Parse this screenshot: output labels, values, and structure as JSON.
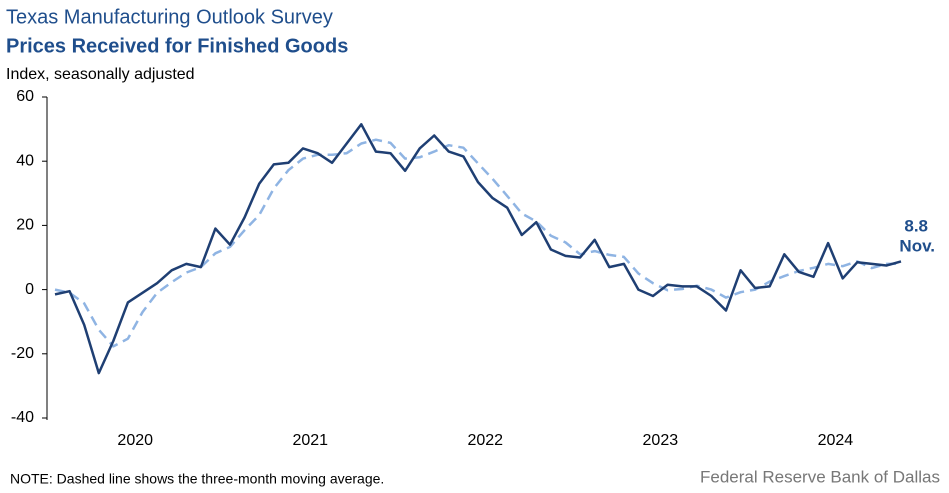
{
  "chart_data": {
    "type": "line",
    "supertitle": "Texas Manufacturing Outlook Survey",
    "title": "Prices Received for Finished Goods",
    "subtitle": "Index, seasonally adjusted",
    "note": "NOTE: Dashed line shows the three-month  moving average.",
    "source": "Federal Reserve Bank of Dallas",
    "categories": [
      null,
      null,
      null,
      null,
      null,
      null,
      null,
      null,
      null,
      null,
      null,
      null,
      null,
      null,
      null,
      null,
      null,
      null,
      null,
      null,
      null,
      null,
      null,
      null,
      null,
      null,
      null,
      null,
      null,
      null,
      null,
      null,
      null,
      null,
      null,
      null,
      null,
      null,
      null,
      null,
      null,
      null,
      null,
      null,
      null,
      null,
      null,
      null,
      null,
      null,
      null,
      null,
      null,
      null,
      null,
      null,
      null,
      null,
      null
    ],
    "year_labels": [
      "2020",
      "2021",
      "2022",
      "2023",
      "2024"
    ],
    "ylim": [
      -40,
      60
    ],
    "yticks": [
      -40,
      -20,
      0,
      20,
      40,
      60
    ],
    "grid": false,
    "series": [
      {
        "color": "#1f3f73",
        "dashed": false,
        "values": [
          -1.5,
          -0.5,
          -11,
          -26,
          -16,
          -4,
          -1,
          2,
          6,
          8,
          7,
          19,
          14,
          22.5,
          33,
          39,
          39.5,
          44,
          42.5,
          39.5,
          45.5,
          51.5,
          43,
          42.5,
          37,
          44,
          48,
          43,
          41.5,
          33.5,
          28.5,
          25.5,
          17,
          21,
          12.5,
          10.5,
          10,
          15.5,
          7,
          8,
          0,
          -2,
          1.5,
          1,
          1,
          -2,
          -6.5,
          6,
          0.5,
          1,
          11,
          5.5,
          4,
          14.5,
          3.5,
          8.5,
          8,
          7.5,
          8.8
        ]
      },
      {
        "color": "#8fb4e3",
        "dashed": true,
        "values": [
          0,
          -1,
          -4.3,
          -12.5,
          -17.7,
          -15.3,
          -7,
          -1,
          2.3,
          5.3,
          7,
          11.3,
          13.3,
          18.5,
          23.2,
          31.5,
          37.2,
          40.8,
          42,
          42,
          42.5,
          45.5,
          46.7,
          45.7,
          40.8,
          41.2,
          43,
          45,
          44.2,
          39.3,
          34.5,
          29.2,
          23.7,
          21.2,
          16.8,
          14.7,
          11,
          12,
          10.8,
          10.2,
          5,
          2,
          -0.2,
          0.2,
          1.2,
          0,
          -2.5,
          -0.8,
          0,
          2.5,
          4.2,
          5.8,
          6.8,
          8,
          7.3,
          8.8,
          6.7,
          8,
          8.1
        ]
      }
    ],
    "annotation": "Nov."
  }
}
